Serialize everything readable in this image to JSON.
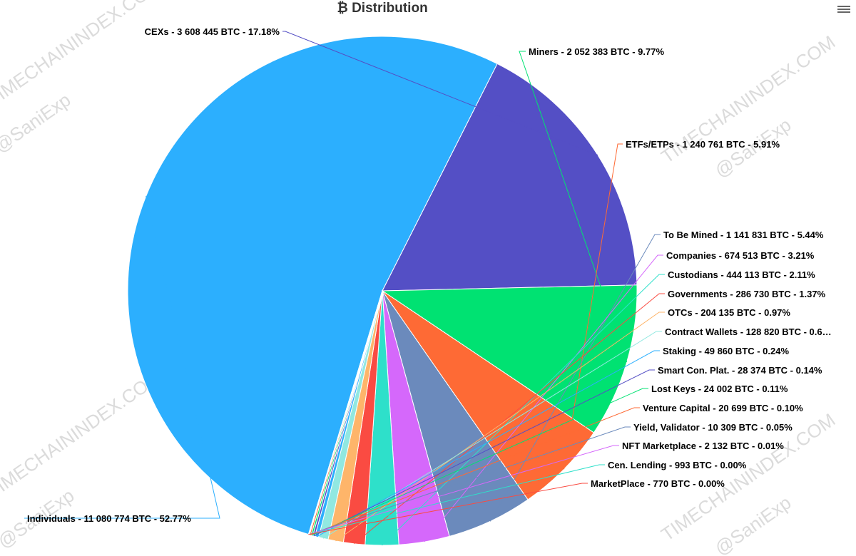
{
  "chart_data": {
    "type": "pie",
    "title": "₿ Distribution",
    "slices": [
      {
        "name": "Individuals",
        "label": "Individuals - 11 080 774 BTC - 52.77%",
        "value": 11080774,
        "percent": 52.77,
        "color": "#2caffe"
      },
      {
        "name": "CEXs",
        "label": "CEXs - 3 608 445 BTC - 17.18%",
        "value": 3608445,
        "percent": 17.18,
        "color": "#544fc5"
      },
      {
        "name": "Miners",
        "label": "Miners - 2 052 383 BTC - 9.77%",
        "value": 2052383,
        "percent": 9.77,
        "color": "#00e272"
      },
      {
        "name": "ETFs/ETPs",
        "label": "ETFs/ETPs - 1 240 761 BTC - 5.91%",
        "value": 1240761,
        "percent": 5.91,
        "color": "#fe6a35"
      },
      {
        "name": "To Be Mined",
        "label": "To Be Mined - 1 141 831 BTC - 5.44%",
        "value": 1141831,
        "percent": 5.44,
        "color": "#6b8abc"
      },
      {
        "name": "Companies",
        "label": "Companies - 674 513 BTC - 3.21%",
        "value": 674513,
        "percent": 3.21,
        "color": "#d568fb"
      },
      {
        "name": "Custodians",
        "label": "Custodians - 444 113 BTC - 2.11%",
        "value": 444113,
        "percent": 2.11,
        "color": "#2ee0ca"
      },
      {
        "name": "Governments",
        "label": "Governments - 286 730 BTC - 1.37%",
        "value": 286730,
        "percent": 1.37,
        "color": "#fa4b42"
      },
      {
        "name": "OTCs",
        "label": "OTCs - 204 135 BTC - 0.97%",
        "value": 204135,
        "percent": 0.97,
        "color": "#feb56a"
      },
      {
        "name": "Contract Wallets",
        "label": "Contract Wallets - 128 820 BTC - 0.6…",
        "value": 128820,
        "percent": 0.61,
        "color": "#91e8e1"
      },
      {
        "name": "Staking",
        "label": "Staking - 49 860 BTC - 0.24%",
        "value": 49860,
        "percent": 0.24,
        "color": "#2caffe"
      },
      {
        "name": "Smart Con. Plat.",
        "label": "Smart Con. Plat. - 28 374 BTC - 0.14%",
        "value": 28374,
        "percent": 0.14,
        "color": "#544fc5"
      },
      {
        "name": "Lost Keys",
        "label": "Lost Keys - 24 002 BTC - 0.11%",
        "value": 24002,
        "percent": 0.11,
        "color": "#00e272"
      },
      {
        "name": "Venture Capital",
        "label": "Venture Capital - 20 699 BTC - 0.10%",
        "value": 20699,
        "percent": 0.1,
        "color": "#fe6a35"
      },
      {
        "name": "Yield, Validator",
        "label": "Yield, Validator - 10 309 BTC - 0.05%",
        "value": 10309,
        "percent": 0.05,
        "color": "#6b8abc"
      },
      {
        "name": "NFT Marketplace",
        "label": "NFT Marketplace - 2 132 BTC - 0.01%",
        "value": 2132,
        "percent": 0.01,
        "color": "#d568fb"
      },
      {
        "name": "Cen. Lending",
        "label": "Cen. Lending - 993 BTC - 0.00%",
        "value": 993,
        "percent": 0.0,
        "color": "#2ee0ca"
      },
      {
        "name": "MarketPlace",
        "label": "MarketPlace - 770 BTC - 0.00%",
        "value": 770,
        "percent": 0.0,
        "color": "#fa4b42"
      }
    ],
    "legend": "none"
  },
  "watermarks": [
    "TIMECHAININDEX.COM",
    "@SaniExp"
  ],
  "menu": {
    "icon": "hamburger-menu-icon"
  }
}
